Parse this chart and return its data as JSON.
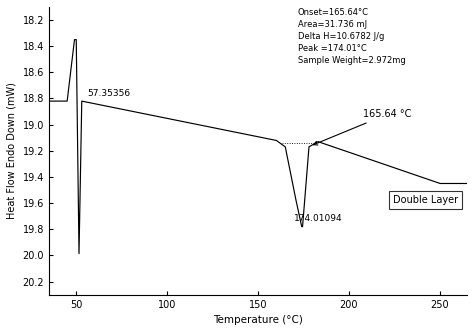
{
  "xlabel": "Temperature (°C)",
  "ylabel": "Heat Flow Endo Down (mW)",
  "xlim": [
    35,
    265
  ],
  "ylim": [
    20.3,
    18.1
  ],
  "xticks": [
    50,
    100,
    150,
    200,
    250
  ],
  "yticks": [
    18.2,
    18.4,
    18.6,
    18.8,
    19.0,
    19.2,
    19.4,
    19.6,
    19.8,
    20.0,
    20.2
  ],
  "annotation_peak_label": "57.35356",
  "annotation_onset_label": "165.64 °C",
  "annotation_trough_label": "174.01094",
  "legend_label": "Double Layer",
  "info_lines": [
    "Onset=165.64°C",
    "Area=31.736 mJ",
    "Delta H=10.6782 J/g",
    "Peak =174.01°C",
    "Sample Weight=2.972mg"
  ],
  "line_color": "#000000",
  "background_color": "#ffffff"
}
